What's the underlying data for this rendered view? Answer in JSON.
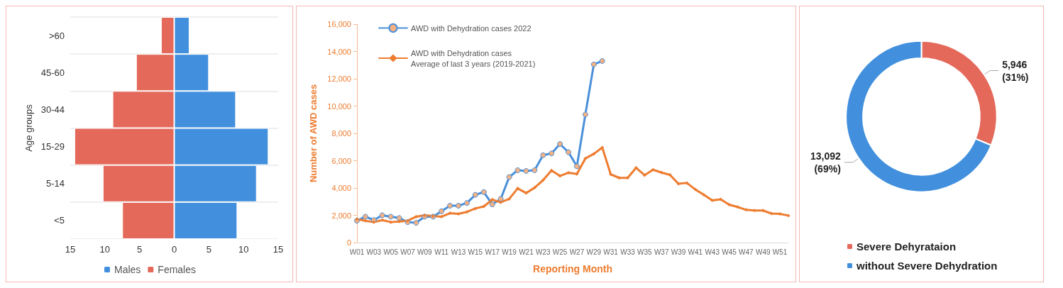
{
  "chart_data": [
    {
      "type": "bar",
      "orientation": "horizontal",
      "stacked": true,
      "ylabel": "Age groups",
      "categories": [
        ">60",
        "45-60",
        "30-44",
        "15-29",
        "5-14",
        "<5"
      ],
      "series": [
        {
          "name": "Males",
          "color": "#4290dd",
          "values": [
            2.2,
            5.0,
            8.9,
            13.6,
            11.9,
            9.1
          ]
        },
        {
          "name": "Females",
          "color": "#e4695a",
          "values": [
            -1.9,
            -5.5,
            -8.9,
            -14.4,
            -10.3,
            -7.5
          ]
        }
      ],
      "xlim": [
        -15,
        15
      ],
      "xticks": [
        {
          "value": -15,
          "label": "15"
        },
        {
          "value": -10,
          "label": "10"
        },
        {
          "value": -5,
          "label": "5"
        },
        0,
        5,
        10,
        15
      ],
      "grid": "y",
      "legend": "bottom"
    },
    {
      "type": "line",
      "xlabel": "Reporting Month",
      "ylabel": "Number of AWD cases",
      "categories": [
        "W01",
        null,
        "W03",
        null,
        "W05",
        null,
        "W07",
        null,
        "W09",
        null,
        "W11",
        null,
        "W13",
        null,
        "W15",
        null,
        "W17",
        null,
        "W19",
        null,
        "W21",
        null,
        "W23",
        null,
        "W25",
        null,
        "W27",
        null,
        "W29",
        null,
        "W31",
        null,
        "W33",
        null,
        "W35",
        null,
        "W37",
        null,
        "W39",
        null,
        "W41",
        null,
        "W43",
        null,
        "W45",
        null,
        "W47",
        null,
        "W49",
        null,
        "W51",
        null
      ],
      "series": [
        {
          "name": "AWD with Dehydration cases 2022",
          "color": "#4a90d9",
          "marker": "circle",
          "values": [
            1600,
            1900,
            1650,
            2000,
            1900,
            1800,
            1500,
            1450,
            1900,
            1900,
            2300,
            2700,
            2700,
            2900,
            3500,
            3700,
            2800,
            3200,
            4800,
            5300,
            5250,
            5300,
            6400,
            6530,
            7220,
            6620,
            5590,
            9380,
            13050,
            13300,
            null,
            null,
            null,
            null,
            null,
            null,
            null,
            null,
            null,
            null,
            null,
            null,
            null,
            null,
            null,
            null,
            null,
            null,
            null,
            null,
            null,
            null
          ]
        },
        {
          "name": "AWD with Dehydration cases\nAverage of last 3 years (2019-2021)",
          "color": "#ed7d31",
          "marker": "diamond",
          "values": [
            1720,
            1600,
            1500,
            1650,
            1500,
            1550,
            1600,
            1900,
            2000,
            1950,
            1900,
            2150,
            2100,
            2250,
            2500,
            2650,
            3150,
            2950,
            3200,
            3970,
            3630,
            4020,
            4570,
            5290,
            4880,
            5120,
            5030,
            6160,
            6500,
            6960,
            5000,
            4740,
            4740,
            5480,
            4940,
            5340,
            5130,
            4960,
            4310,
            4370,
            3890,
            3510,
            3090,
            3170,
            2780,
            2610,
            2400,
            2350,
            2350,
            2130,
            2100,
            1980
          ]
        }
      ],
      "ylim": [
        0,
        16000
      ],
      "yticks": [
        0,
        {
          "value": 2000,
          "label": "2,000"
        },
        {
          "value": 4000,
          "label": "4,000"
        },
        {
          "value": 6000,
          "label": "6,000"
        },
        {
          "value": 8000,
          "label": "8,000"
        },
        {
          "value": 10000,
          "label": "10,000"
        },
        {
          "value": 12000,
          "label": "12,000"
        },
        {
          "value": 14000,
          "label": "14,000"
        },
        {
          "value": 16000,
          "label": "16,000"
        }
      ],
      "grid": false,
      "legend": "top left"
    },
    {
      "type": "donut",
      "categories": [
        "Severe Dehyrataion",
        "without Severe Dehydration"
      ],
      "values": [
        5946,
        13092
      ],
      "colors": [
        "#e4695a",
        "#4290dd"
      ],
      "value_labels": [
        "5,946\n(31%)",
        "13,092\n(69%)"
      ],
      "legend": "bottom"
    }
  ]
}
